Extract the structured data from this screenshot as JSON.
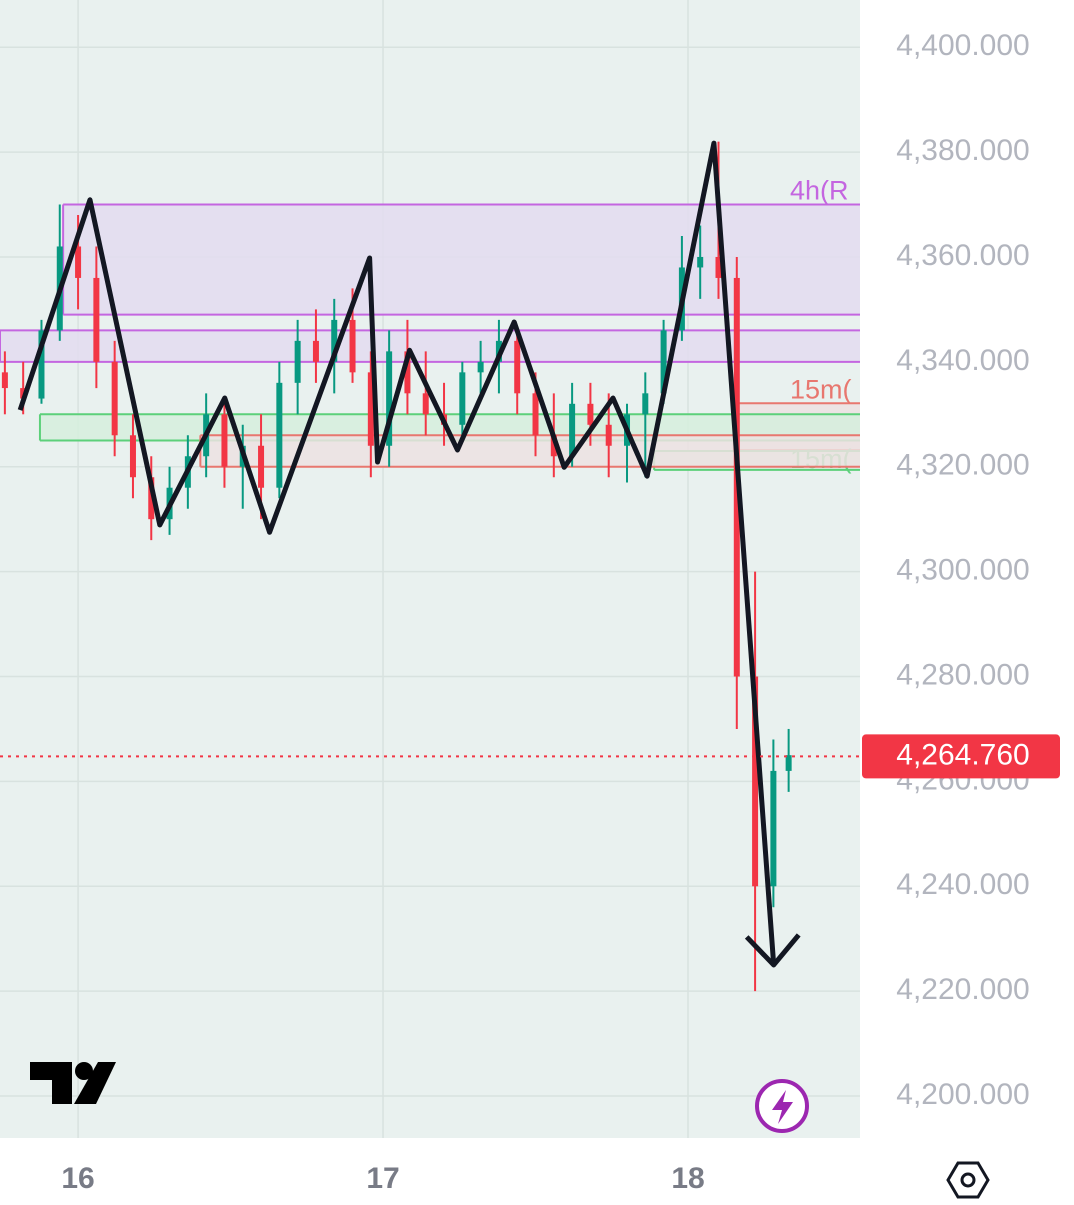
{
  "chart_data": {
    "type": "candlestick",
    "xlim": [
      15.744,
      18.564
    ],
    "xticks": [
      16,
      17,
      18
    ],
    "ylim": [
      4192,
      4409
    ],
    "yticks": [
      {
        "value": 4200,
        "label": "4,200.000"
      },
      {
        "value": 4220,
        "label": "4,220.000"
      },
      {
        "value": 4240,
        "label": "4,240.000"
      },
      {
        "value": 4260,
        "label": "4,260.000"
      },
      {
        "value": 4280,
        "label": "4,280.000"
      },
      {
        "value": 4300,
        "label": "4,300.000"
      },
      {
        "value": 4320,
        "label": "4,320.000"
      },
      {
        "value": 4340,
        "label": "4,340.000"
      },
      {
        "value": 4360,
        "label": "4,360.000"
      },
      {
        "value": 4380,
        "label": "4,380.000"
      },
      {
        "value": 4400,
        "label": "4,400.000"
      }
    ],
    "grid": true,
    "up_color": "#089981",
    "down_color": "#f23645",
    "candles": {
      "x": [
        15.76,
        15.82,
        15.88,
        15.94,
        16.0,
        16.06,
        16.12,
        16.18,
        16.24,
        16.3,
        16.36,
        16.42,
        16.48,
        16.54,
        16.6,
        16.66,
        16.72,
        16.78,
        16.84,
        16.9,
        16.96,
        17.02,
        17.08,
        17.14,
        17.2,
        17.26,
        17.32,
        17.38,
        17.44,
        17.5,
        17.56,
        17.62,
        17.68,
        17.74,
        17.8,
        17.86,
        17.92,
        17.98,
        18.04,
        18.1,
        18.16,
        18.22,
        18.28,
        18.33
      ],
      "open": [
        4338,
        4335,
        4333,
        4346,
        4362,
        4356,
        4340,
        4326,
        4318,
        4310,
        4316,
        4322,
        4330,
        4320,
        4324,
        4316,
        4336,
        4344,
        4340,
        4348,
        4338,
        4324,
        4342,
        4334,
        4330,
        4328,
        4338,
        4340,
        4344,
        4334,
        4326,
        4322,
        4332,
        4328,
        4324,
        4330,
        4334,
        4346,
        4358,
        4360,
        4356,
        4280,
        4240,
        4262
      ],
      "high": [
        4342,
        4340,
        4348,
        4370,
        4368,
        4362,
        4344,
        4330,
        4322,
        4320,
        4326,
        4334,
        4333,
        4328,
        4330,
        4340,
        4348,
        4350,
        4352,
        4354,
        4342,
        4346,
        4348,
        4342,
        4336,
        4340,
        4344,
        4348,
        4346,
        4338,
        4334,
        4336,
        4336,
        4334,
        4332,
        4338,
        4348,
        4364,
        4366,
        4382,
        4360,
        4300,
        4268,
        4270
      ],
      "low": [
        4330,
        4330,
        4332,
        4344,
        4350,
        4335,
        4322,
        4314,
        4306,
        4307,
        4312,
        4318,
        4316,
        4312,
        4310,
        4314,
        4330,
        4336,
        4334,
        4336,
        4318,
        4320,
        4330,
        4326,
        4324,
        4326,
        4334,
        4334,
        4330,
        4322,
        4318,
        4320,
        4324,
        4318,
        4317,
        4318,
        4332,
        4344,
        4352,
        4352,
        4270,
        4220,
        4236,
        4258
      ],
      "close": [
        4335,
        4333,
        4346,
        4362,
        4356,
        4340,
        4326,
        4318,
        4310,
        4316,
        4322,
        4330,
        4320,
        4324,
        4316,
        4336,
        4344,
        4340,
        4348,
        4338,
        4324,
        4342,
        4334,
        4330,
        4328,
        4338,
        4340,
        4344,
        4334,
        4326,
        4322,
        4332,
        4328,
        4324,
        4330,
        4334,
        4346,
        4358,
        4360,
        4356,
        4280,
        4240,
        4262,
        4265
      ]
    },
    "zigzag": {
      "color": "#131722",
      "x": [
        15.81,
        16.039,
        16.268,
        16.481,
        16.628,
        16.956,
        16.982,
        17.087,
        17.244,
        17.43,
        17.594,
        17.754,
        17.866,
        18.085,
        18.281
      ],
      "y": [
        4330.8,
        4370.9,
        4308.9,
        4333.1,
        4307.5,
        4359.8,
        4320.9,
        4342.2,
        4323.2,
        4347.6,
        4319.9,
        4333.1,
        4318.2,
        4381.7,
        4225.0
      ]
    },
    "zones": [
      {
        "x0": 15.951,
        "ylim": [
          4349,
          4370
        ],
        "color": "#c466e0",
        "fill": "#e3dcf0",
        "label": "4h(R"
      },
      {
        "x0": 18.15,
        "ylim": [
          4323.2,
          4332.1
        ],
        "color": "#e8776f",
        "fill": "#ece2e2",
        "label": "15m("
      },
      {
        "x0": 17.889,
        "ylim": [
          4319.4,
          4323.0
        ],
        "color": "#5cd07a",
        "fill": "#dcefe2",
        "label": "15m("
      },
      {
        "x0": 15.744,
        "ylim": [
          4340,
          4346
        ],
        "color": "#c466e0",
        "fill": "#e3dcf0"
      },
      {
        "x0": 15.875,
        "ylim": [
          4325,
          4330
        ],
        "color": "#5cd07a",
        "fill": "#d6efdd"
      },
      {
        "x0": 16.401,
        "ylim": [
          4320,
          4326
        ],
        "color": "#e8776f",
        "fill": "#ece2e2"
      }
    ],
    "price_line": {
      "value": 4264.76,
      "label": "4,264.760",
      "color": "#f23645"
    }
  }
}
